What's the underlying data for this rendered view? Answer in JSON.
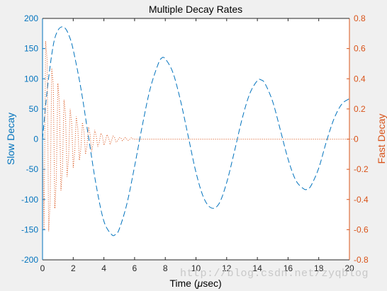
{
  "chart_data": {
    "type": "line",
    "title": "Multiple Decay Rates",
    "xlabel_prefix": "Time (",
    "xlabel_mu": "μ",
    "xlabel_suffix": "sec)",
    "ylabel_left": "Slow Decay",
    "ylabel_right": "Fast Decay",
    "xlim": [
      0,
      20
    ],
    "ylim_left": [
      -200,
      200
    ],
    "ylim_right": [
      -0.8,
      0.8
    ],
    "x_ticks": [
      0,
      2,
      4,
      6,
      8,
      10,
      12,
      14,
      16,
      18,
      20
    ],
    "y_ticks_left": [
      -200,
      -150,
      -100,
      -50,
      0,
      50,
      100,
      150,
      200
    ],
    "y_ticks_right": [
      -0.8,
      -0.6,
      -0.4,
      -0.2,
      0,
      0.2,
      0.4,
      0.6,
      0.8
    ],
    "grid": false,
    "series": [
      {
        "axis": "left",
        "style": "dashed",
        "color": "#0072BD",
        "x": [
          0,
          0.25,
          0.5,
          0.75,
          1,
          1.25,
          1.5,
          1.75,
          2,
          2.5,
          3,
          3.5,
          4,
          4.5,
          4.75,
          5,
          5.5,
          6,
          6.5,
          7,
          7.5,
          7.75,
          8,
          8.5,
          9,
          9.5,
          10,
          10.5,
          11,
          11.5,
          12,
          12.5,
          13,
          13.5,
          14,
          14.25,
          14.5,
          15,
          15.5,
          16,
          16.5,
          17,
          17.25,
          17.5,
          18,
          18.5,
          19,
          19.5,
          20
        ],
        "y": [
          0,
          68,
          122,
          162,
          180,
          186,
          183,
          170,
          148,
          84,
          3,
          -77,
          -136,
          -158,
          -158,
          -149,
          -107,
          -45,
          22,
          82,
          122,
          134,
          133,
          110,
          63,
          4,
          -55,
          -97,
          -114,
          -107,
          -72,
          -21,
          33,
          75,
          97,
          98,
          92,
          62,
          15,
          -33,
          -68,
          -82,
          -83,
          -77,
          -48,
          -4,
          34,
          58,
          67
        ]
      },
      {
        "axis": "right",
        "style": "dotted",
        "color": "#D95319",
        "x_start": 0,
        "x_step": 0.1,
        "y": [
          0,
          -0.6,
          0.65,
          0.53,
          -0.61,
          -0.41,
          0.47,
          0.36,
          -0.46,
          -0.27,
          0.37,
          0.24,
          -0.34,
          -0.19,
          0.26,
          0.16,
          -0.25,
          -0.12,
          0.2,
          0.11,
          -0.19,
          -0.08,
          0.15,
          0.07,
          -0.14,
          -0.06,
          0.11,
          0.05,
          -0.1,
          -0.04,
          0.08,
          0.03,
          -0.08,
          -0.03,
          0.06,
          0.02,
          -0.05,
          -0.02,
          0.04,
          0.02,
          -0.04,
          -0.01,
          0.03,
          0.01,
          -0.03,
          -0.01,
          0.02,
          0.01,
          -0.02,
          -0.01,
          0.01,
          0.01,
          -0.01,
          0,
          0.01,
          0,
          -0.01,
          0,
          0.01,
          0,
          0,
          0,
          0,
          0,
          0,
          0,
          0,
          0,
          0,
          0,
          0,
          0,
          0,
          0,
          0,
          0,
          0,
          0,
          0,
          0,
          0,
          0,
          0,
          0,
          0,
          0,
          0,
          0,
          0,
          0,
          0,
          0,
          0,
          0,
          0,
          0,
          0,
          0,
          0,
          0,
          0,
          0,
          0,
          0,
          0,
          0,
          0,
          0,
          0,
          0,
          0,
          0,
          0,
          0,
          0,
          0,
          0,
          0,
          0,
          0,
          0,
          0,
          0,
          0,
          0,
          0,
          0,
          0,
          0,
          0,
          0,
          0,
          0,
          0,
          0,
          0,
          0,
          0,
          0,
          0,
          0,
          0,
          0,
          0,
          0,
          0,
          0,
          0,
          0,
          0,
          0,
          0,
          0,
          0,
          0,
          0,
          0,
          0,
          0,
          0,
          0,
          0,
          0,
          0,
          0,
          0,
          0,
          0,
          0,
          0,
          0,
          0,
          0,
          0,
          0,
          0,
          0,
          0,
          0,
          0,
          0,
          0,
          0,
          0,
          0,
          0,
          0,
          0,
          0,
          0,
          0,
          0,
          0,
          0,
          0,
          0,
          0,
          0,
          0,
          0,
          0,
          0,
          0,
          0,
          0
        ]
      }
    ]
  },
  "colors": {
    "left_axis": "#0072BD",
    "right_axis": "#D95319",
    "x_axis": "#262626",
    "axes_background": "#ffffff",
    "figure_background": "#f0f0f0"
  },
  "watermark": "http://blog.csdn.net/zyqblog"
}
